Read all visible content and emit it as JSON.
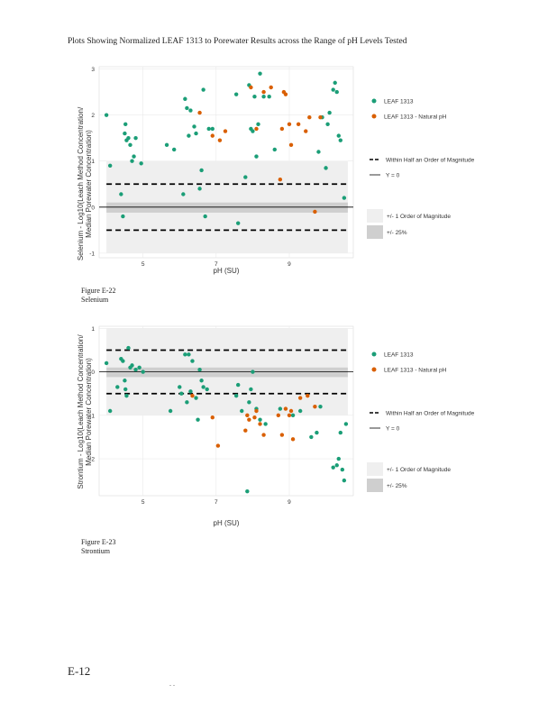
{
  "page": {
    "title": "Plots Showing Normalized LEAF 1313 to Porewater Results across the Range of pH Levels Tested",
    "page_number": "E-12",
    "footer_marks": ". ."
  },
  "colors": {
    "leaf1313": "#1b9e77",
    "leaf1313_natural": "#d95f02",
    "band_order": "#efefef",
    "band_25": "#cfcfcf",
    "reference": "#000000"
  },
  "legend": {
    "series_1313": "LEAF 1313",
    "series_natural": "LEAF 1313 - Natural pH",
    "half_order": "Within Half an Order of Magnitude",
    "y_zero": "Y = 0",
    "band_order": "+/- 1 Order of Magnitude",
    "band_25": "+/- 25%"
  },
  "figures": [
    {
      "label": "Figure E-22",
      "caption": "Selenium"
    },
    {
      "label": "Figure E-23",
      "caption": "Strontium"
    }
  ],
  "chart_data": [
    {
      "type": "scatter",
      "title": "Selenium",
      "xlabel": "pH (SU)",
      "ylabel_line1": "Selenium - Log10(Leach Method Concentration/",
      "ylabel_line2": "Median Porewater Concentration)",
      "xlim": [
        3.8,
        10.75
      ],
      "ylim": [
        -1.1,
        3.05
      ],
      "x_ticks": [
        5,
        7,
        9
      ],
      "x_tick_labels": [
        "5",
        "7",
        "9"
      ],
      "y_ticks": [
        -1,
        0,
        1,
        2,
        3
      ],
      "y_tick_labels": [
        "-1",
        "0",
        "1",
        "2",
        "3"
      ],
      "half_order_lines": [
        0.5,
        -0.5
      ],
      "band_order_range": [
        -1,
        1
      ],
      "band_25_range": [
        -0.12,
        0.1
      ],
      "series": [
        {
          "name": "LEAF 1313",
          "x": [
            4.0,
            4.1,
            4.4,
            4.45,
            4.5,
            4.52,
            4.55,
            4.6,
            4.65,
            4.7,
            4.75,
            4.8,
            4.95,
            5.65,
            5.85,
            6.1,
            6.15,
            6.2,
            6.25,
            6.3,
            6.4,
            6.45,
            6.55,
            6.6,
            6.65,
            6.7,
            6.8,
            6.9,
            7.55,
            7.6,
            7.8,
            7.9,
            7.95,
            8.0,
            8.05,
            8.1,
            8.15,
            8.2,
            8.3,
            8.45,
            8.6,
            9.8,
            9.9,
            10.0,
            10.05,
            10.1,
            10.2,
            10.25,
            10.3,
            10.35,
            10.4,
            10.5
          ],
          "y": [
            2.0,
            0.9,
            0.28,
            -0.2,
            1.6,
            1.8,
            1.45,
            1.5,
            1.35,
            1.0,
            1.1,
            1.5,
            0.95,
            1.35,
            1.25,
            0.28,
            2.35,
            2.15,
            1.55,
            2.1,
            1.75,
            1.6,
            0.4,
            0.8,
            2.55,
            -0.2,
            1.7,
            1.7,
            2.45,
            -0.35,
            0.65,
            2.65,
            1.7,
            1.65,
            2.4,
            1.1,
            1.8,
            2.9,
            2.4,
            2.4,
            1.25,
            1.2,
            1.95,
            0.85,
            1.8,
            2.05,
            2.55,
            2.7,
            2.5,
            1.55,
            1.45,
            0.2
          ]
        },
        {
          "name": "LEAF 1313 - Natural pH",
          "x": [
            6.55,
            6.9,
            7.1,
            7.25,
            7.95,
            8.1,
            8.3,
            8.5,
            8.75,
            8.8,
            8.85,
            8.9,
            9.0,
            9.05,
            9.25,
            9.45,
            9.55,
            9.7,
            9.85
          ],
          "y": [
            2.05,
            1.55,
            1.45,
            1.65,
            2.6,
            1.7,
            2.5,
            2.6,
            0.6,
            1.7,
            2.5,
            2.45,
            1.8,
            1.35,
            1.8,
            1.65,
            1.95,
            -0.1,
            1.95
          ]
        }
      ]
    },
    {
      "type": "scatter",
      "title": "Strontium",
      "xlabel": "pH (SU)",
      "ylabel_line1": "Strontium - Log10(Leach Method Concentration/",
      "ylabel_line2": "Median Porewater Concentration)",
      "xlim": [
        3.8,
        10.75
      ],
      "ylim": [
        -2.85,
        1.05
      ],
      "x_ticks": [
        5,
        7,
        9
      ],
      "x_tick_labels": [
        "5",
        "7",
        "9"
      ],
      "y_ticks": [
        -2,
        -1,
        0,
        1
      ],
      "y_tick_labels": [
        "-2",
        "-1",
        "0",
        "1"
      ],
      "half_order_lines": [
        0.5,
        -0.5
      ],
      "band_order_range": [
        -1,
        1
      ],
      "band_25_range": [
        -0.12,
        0.1
      ],
      "series": [
        {
          "name": "LEAF 1313",
          "x": [
            4.0,
            4.1,
            4.3,
            4.4,
            4.45,
            4.5,
            4.52,
            4.55,
            4.6,
            4.65,
            4.7,
            4.8,
            4.9,
            5.0,
            5.75,
            6.0,
            6.05,
            6.15,
            6.2,
            6.25,
            6.3,
            6.35,
            6.45,
            6.5,
            6.55,
            6.6,
            6.65,
            6.75,
            7.55,
            7.6,
            7.7,
            7.85,
            7.9,
            7.95,
            8.0,
            8.1,
            8.2,
            8.35,
            8.75,
            9.1,
            9.3,
            9.6,
            9.75,
            9.85,
            10.2,
            10.3,
            10.35,
            10.4,
            10.45,
            10.5,
            10.55
          ],
          "y": [
            0.2,
            -0.9,
            -0.35,
            0.3,
            0.25,
            -0.2,
            -0.4,
            -0.55,
            0.55,
            0.1,
            0.15,
            0.05,
            0.1,
            0.0,
            -0.9,
            -0.35,
            -0.5,
            0.4,
            -0.7,
            0.4,
            -0.45,
            0.25,
            -0.6,
            -1.1,
            0.05,
            -0.2,
            -0.35,
            -0.4,
            -0.55,
            -0.3,
            -0.9,
            -2.75,
            -0.7,
            -0.4,
            0.0,
            -0.85,
            -1.1,
            -1.2,
            -0.85,
            -1.0,
            -0.9,
            -1.5,
            -1.4,
            -0.8,
            -2.2,
            -2.15,
            -2.0,
            -1.4,
            -2.25,
            -2.5,
            -1.2
          ]
        },
        {
          "name": "LEAF 1313 - Natural pH",
          "x": [
            6.35,
            6.9,
            7.05,
            7.8,
            7.85,
            7.9,
            8.05,
            8.1,
            8.2,
            8.3,
            8.7,
            8.8,
            8.9,
            9.0,
            9.05,
            9.1,
            9.3,
            9.5,
            9.7
          ],
          "y": [
            -0.55,
            -1.05,
            -1.7,
            -1.35,
            -1.0,
            -1.1,
            -1.05,
            -0.9,
            -1.2,
            -1.45,
            -1.0,
            -1.45,
            -0.85,
            -1.0,
            -0.9,
            -1.55,
            -0.6,
            -0.55,
            -0.8
          ]
        }
      ]
    }
  ]
}
